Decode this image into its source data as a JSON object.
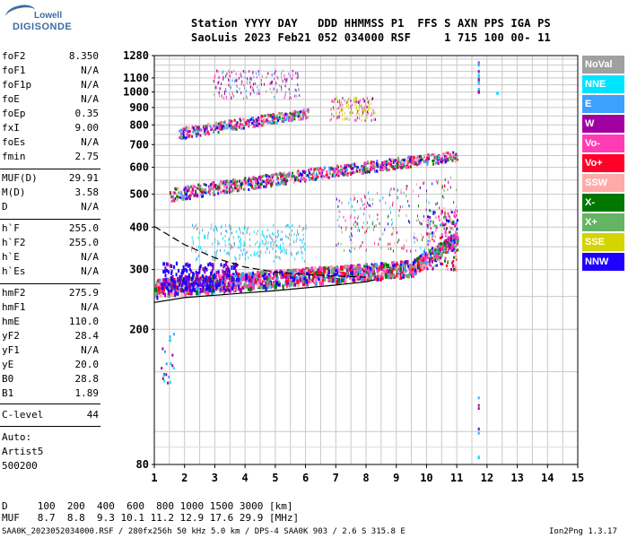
{
  "logo": {
    "top": "Lowell",
    "bottom": "DIGISONDE"
  },
  "header": {
    "line1": "Station YYYY DAY   DDD HHMMSS P1  FFS S AXN PPS IGA PS",
    "line2": "SaoLuis 2023 Feb21 052 034000 RSF     1 715 100 00- 11"
  },
  "parameters": {
    "group1": [
      {
        "name": "foF2",
        "value": "8.350"
      },
      {
        "name": "foF1",
        "value": "N/A"
      },
      {
        "name": "foF1p",
        "value": "N/A"
      },
      {
        "name": "foE",
        "value": "N/A"
      },
      {
        "name": "foEp",
        "value": "0.35"
      },
      {
        "name": "fxI",
        "value": "9.00"
      },
      {
        "name": "foEs",
        "value": "N/A"
      },
      {
        "name": "fmin",
        "value": "2.75"
      }
    ],
    "group2": [
      {
        "name": "MUF(D)",
        "value": "29.91"
      },
      {
        "name": "M(D)",
        "value": "3.58"
      },
      {
        "name": "D",
        "value": "N/A"
      }
    ],
    "group3": [
      {
        "name": "h`F",
        "value": "255.0"
      },
      {
        "name": "h`F2",
        "value": "255.0"
      },
      {
        "name": "h`E",
        "value": "N/A"
      },
      {
        "name": "h`Es",
        "value": "N/A"
      }
    ],
    "group4": [
      {
        "name": "hmF2",
        "value": "275.9"
      },
      {
        "name": "hmF1",
        "value": "N/A"
      },
      {
        "name": "hmE",
        "value": "110.0"
      },
      {
        "name": "yF2",
        "value": "28.4"
      },
      {
        "name": "yF1",
        "value": "N/A"
      },
      {
        "name": "yE",
        "value": "20.0"
      },
      {
        "name": "B0",
        "value": "28.8"
      },
      {
        "name": "B1",
        "value": "1.89"
      }
    ],
    "group5": [
      {
        "name": "C-level",
        "value": "44"
      }
    ]
  },
  "scaling": {
    "line1": "Auto:",
    "line2": "Artist5",
    "line3": "500200"
  },
  "legend": [
    {
      "label": "NoVal",
      "color": "#a0a0a0"
    },
    {
      "label": "NNE",
      "color": "#00e5ff"
    },
    {
      "label": "E",
      "color": "#3ca0ff"
    },
    {
      "label": "W",
      "color": "#a000a0"
    },
    {
      "label": "Vo-",
      "color": "#ff3cb4"
    },
    {
      "label": "Vo+",
      "color": "#ff0028"
    },
    {
      "label": "SSW",
      "color": "#ffaaaa"
    },
    {
      "label": "X-",
      "color": "#007800"
    },
    {
      "label": "X+",
      "color": "#64b464"
    },
    {
      "label": "SSE",
      "color": "#d4d400"
    },
    {
      "label": "NNW",
      "color": "#1e00ff"
    }
  ],
  "chart_data": {
    "type": "scatter",
    "title": "",
    "xlabel": "",
    "ylabel": "",
    "xlim": [
      1,
      15
    ],
    "ylim": [
      80,
      1280
    ],
    "x_ticks": [
      1,
      2,
      3,
      4,
      5,
      6,
      7,
      8,
      9,
      10,
      11,
      12,
      13,
      14,
      15
    ],
    "y_ticks": [
      80,
      200,
      300,
      400,
      500,
      600,
      700,
      800,
      900,
      1000,
      1100,
      1280
    ],
    "y_scale": "log",
    "grid": true,
    "traces": [
      {
        "name": "F2 trace",
        "freq_range": [
          1.0,
          11.0
        ],
        "virtual_height_range": [
          245,
          390
        ]
      },
      {
        "name": "Second hop",
        "freq_range": [
          1.5,
          11.0
        ],
        "virtual_height_range": [
          490,
          700
        ]
      },
      {
        "name": "Third hop",
        "freq_range": [
          1.8,
          8.0
        ],
        "virtual_height_range": [
          740,
          960
        ]
      },
      {
        "name": "Fourth hop",
        "freq_range": [
          2.8,
          5.8
        ],
        "virtual_height_range": [
          960,
          1200
        ]
      }
    ],
    "profile_curves": [
      {
        "name": "upper",
        "points": [
          [
            1.0,
            402
          ],
          [
            2.0,
            355
          ],
          [
            3.0,
            325
          ],
          [
            4.0,
            305
          ],
          [
            5.0,
            295
          ],
          [
            6.0,
            290
          ],
          [
            7.0,
            287
          ],
          [
            8.0,
            285
          ]
        ]
      },
      {
        "name": "lower",
        "points": [
          [
            1.0,
            240
          ],
          [
            2.0,
            248
          ],
          [
            3.0,
            252
          ],
          [
            4.0,
            256
          ],
          [
            5.0,
            260
          ],
          [
            6.0,
            265
          ],
          [
            7.0,
            270
          ],
          [
            8.0,
            276
          ],
          [
            8.3,
            280
          ]
        ]
      }
    ]
  },
  "footer": {
    "d_line": "D     100  200  400  600  800 1000 1500 3000 [km]",
    "muf_line": "MUF   8.7  8.8  9.3 10.1 11.2 12.9 17.6 29.9 [MHz]",
    "file_line": "SAA0K_2023052034000.RSF / 280fx256h 50 kHz 5.0 km / DPS-4 SAA0K 903 / 2.6 S 315.8 E",
    "version": "Ion2Png 1.3.17"
  }
}
